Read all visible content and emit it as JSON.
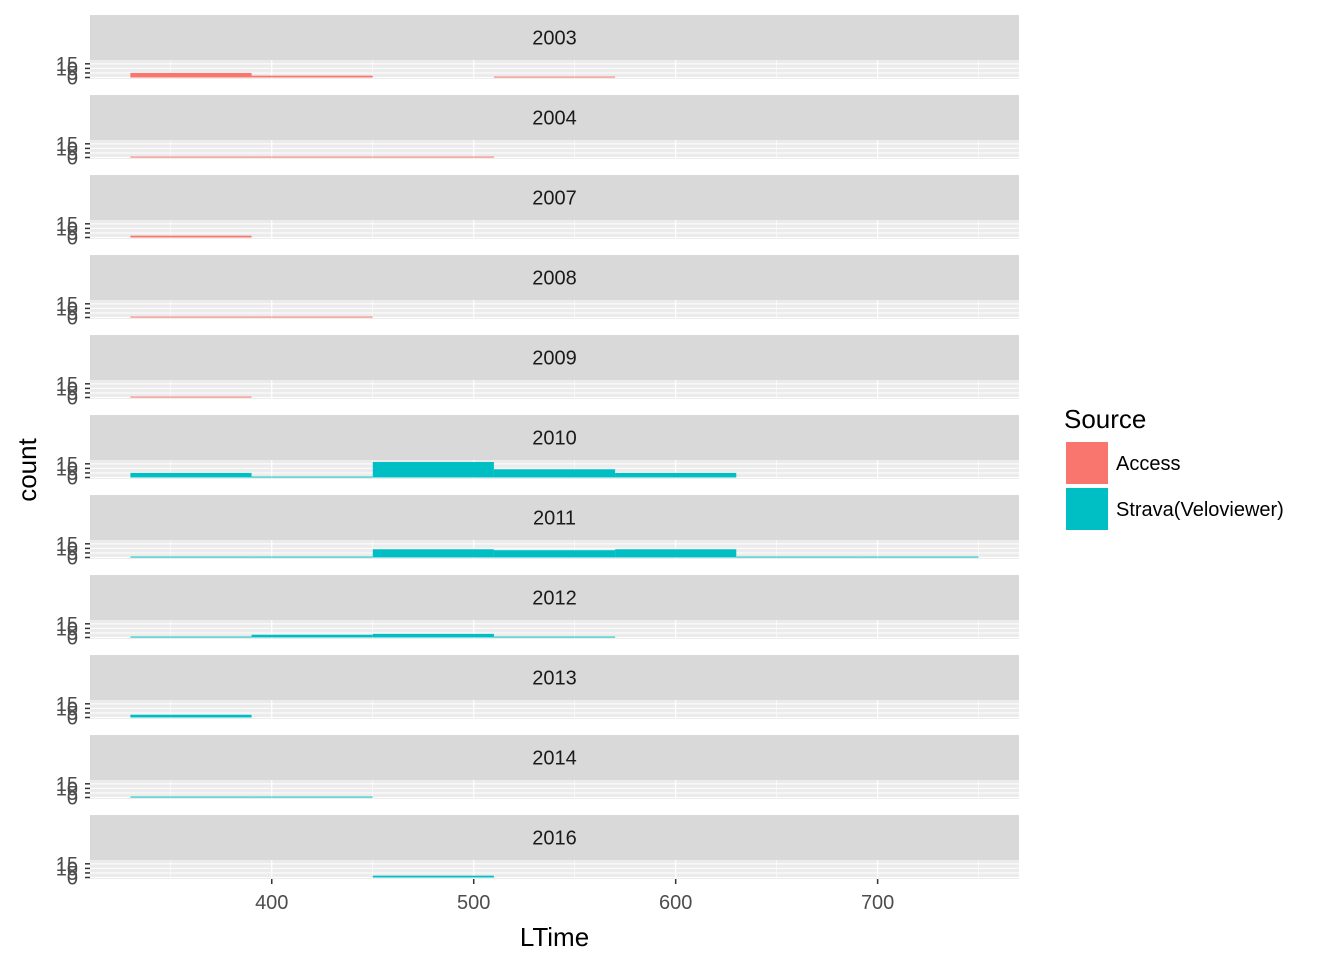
{
  "chart_data": {
    "type": "bar",
    "facet_by": "year",
    "xlabel": "LTime",
    "ylabel": "count",
    "xlim": [
      310,
      770
    ],
    "ylim": [
      0,
      17
    ],
    "x_ticks": [
      400,
      500,
      600,
      700
    ],
    "y_ticks": [
      0,
      5,
      10,
      15
    ],
    "bin_width": 60,
    "grid": true,
    "legend": {
      "title": "Source",
      "position": "right",
      "entries": [
        {
          "name": "Access",
          "color": "#F8766D"
        },
        {
          "name": "Strava(Veloviewer)",
          "color": "#00BFC4"
        }
      ]
    },
    "panels": [
      {
        "label": "2003",
        "bars": [
          {
            "source": "Access",
            "x0": 330,
            "x1": 390,
            "count": 5
          },
          {
            "source": "Access",
            "x0": 390,
            "x1": 450,
            "count": 2
          },
          {
            "source": "Access",
            "x0": 510,
            "x1": 570,
            "count": 1
          }
        ]
      },
      {
        "label": "2004",
        "bars": [
          {
            "source": "Access",
            "x0": 330,
            "x1": 390,
            "count": 1
          },
          {
            "source": "Access",
            "x0": 390,
            "x1": 450,
            "count": 1
          },
          {
            "source": "Access",
            "x0": 450,
            "x1": 510,
            "count": 1
          }
        ]
      },
      {
        "label": "2007",
        "bars": [
          {
            "source": "Access",
            "x0": 330,
            "x1": 390,
            "count": 2
          }
        ]
      },
      {
        "label": "2008",
        "bars": [
          {
            "source": "Access",
            "x0": 330,
            "x1": 390,
            "count": 1
          },
          {
            "source": "Access",
            "x0": 390,
            "x1": 450,
            "count": 1
          }
        ]
      },
      {
        "label": "2009",
        "bars": [
          {
            "source": "Access",
            "x0": 330,
            "x1": 390,
            "count": 1
          }
        ]
      },
      {
        "label": "2010",
        "bars": [
          {
            "source": "Strava(Veloviewer)",
            "x0": 330,
            "x1": 390,
            "count": 5
          },
          {
            "source": "Strava(Veloviewer)",
            "x0": 390,
            "x1": 450,
            "count": 1
          },
          {
            "source": "Strava(Veloviewer)",
            "x0": 450,
            "x1": 510,
            "count": 17
          },
          {
            "source": "Strava(Veloviewer)",
            "x0": 510,
            "x1": 570,
            "count": 9
          },
          {
            "source": "Strava(Veloviewer)",
            "x0": 570,
            "x1": 630,
            "count": 5
          }
        ]
      },
      {
        "label": "2011",
        "bars": [
          {
            "source": "Strava(Veloviewer)",
            "x0": 330,
            "x1": 390,
            "count": 1
          },
          {
            "source": "Strava(Veloviewer)",
            "x0": 390,
            "x1": 450,
            "count": 1
          },
          {
            "source": "Strava(Veloviewer)",
            "x0": 450,
            "x1": 510,
            "count": 9
          },
          {
            "source": "Strava(Veloviewer)",
            "x0": 510,
            "x1": 570,
            "count": 8
          },
          {
            "source": "Strava(Veloviewer)",
            "x0": 570,
            "x1": 630,
            "count": 9
          },
          {
            "source": "Strava(Veloviewer)",
            "x0": 630,
            "x1": 690,
            "count": 1
          },
          {
            "source": "Strava(Veloviewer)",
            "x0": 690,
            "x1": 750,
            "count": 1
          }
        ]
      },
      {
        "label": "2012",
        "bars": [
          {
            "source": "Strava(Veloviewer)",
            "x0": 330,
            "x1": 390,
            "count": 1
          },
          {
            "source": "Strava(Veloviewer)",
            "x0": 390,
            "x1": 450,
            "count": 3
          },
          {
            "source": "Strava(Veloviewer)",
            "x0": 450,
            "x1": 510,
            "count": 4
          },
          {
            "source": "Strava(Veloviewer)",
            "x0": 510,
            "x1": 570,
            "count": 1
          }
        ]
      },
      {
        "label": "2013",
        "bars": [
          {
            "source": "Strava(Veloviewer)",
            "x0": 330,
            "x1": 390,
            "count": 3
          }
        ]
      },
      {
        "label": "2014",
        "bars": [
          {
            "source": "Strava(Veloviewer)",
            "x0": 330,
            "x1": 390,
            "count": 1
          },
          {
            "source": "Strava(Veloviewer)",
            "x0": 390,
            "x1": 450,
            "count": 1
          }
        ]
      },
      {
        "label": "2016",
        "bars": [
          {
            "source": "Strava(Veloviewer)",
            "x0": 450,
            "x1": 510,
            "count": 2
          }
        ]
      }
    ]
  }
}
